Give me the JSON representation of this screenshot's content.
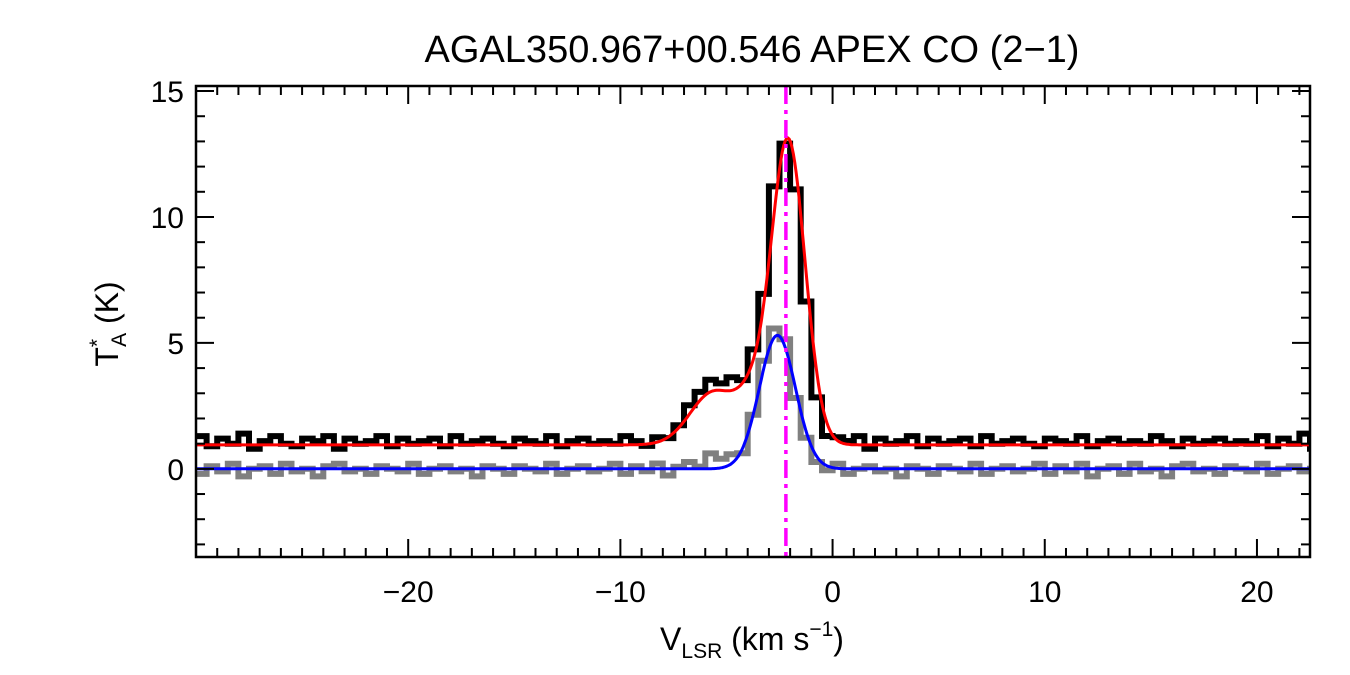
{
  "chart_data": {
    "type": "line",
    "title": "AGAL350.967+00.546  APEX CO (2−1)",
    "xlabel": {
      "main": "V",
      "sub": "LSR",
      "rest": " (km s",
      "sup": "−1",
      "end": ")"
    },
    "ylabel": {
      "main": "T",
      "sup": "*",
      "sub": "A",
      "rest": " (K)"
    },
    "xlim": [
      -30,
      22.5
    ],
    "ylim": [
      -3.5,
      15.2
    ],
    "xticks": [
      -20,
      -10,
      0,
      10,
      20
    ],
    "yticks": [
      0,
      5,
      10,
      15
    ],
    "xtick_labels": [
      "−20",
      "−10",
      "0",
      "10",
      "20"
    ],
    "ytick_labels": [
      "0",
      "5",
      "10",
      "15"
    ],
    "vline_x": -2.2,
    "series": [
      {
        "style": "histogram",
        "color": "#000000",
        "baseline": 1.0,
        "x_start": -30,
        "x_step": 0.5,
        "noise_values": [
          0.3,
          -0.1,
          0.2,
          0.0,
          0.4,
          -0.2,
          0.1,
          0.3,
          0.0,
          -0.1,
          0.2,
          0.1,
          0.3,
          -0.2,
          0.2,
          0.0,
          0.1,
          0.3,
          -0.1,
          0.2,
          0.0,
          0.1,
          0.2,
          -0.1,
          0.3,
          0.0,
          0.1,
          0.2,
          0.0,
          -0.1,
          0.2,
          0.1,
          0.0,
          0.3,
          -0.1,
          0.1,
          0.2,
          0.0,
          0.1,
          0.0,
          0.3,
          0.1,
          -0.1,
          0.2,
          0.0,
          0.1,
          0.2,
          0.0,
          0.1,
          0.0
        ],
        "components": [
          {
            "amp": 11.9,
            "center": -2.2,
            "sigma": 0.75
          },
          {
            "amp": 2.3,
            "center": -5.8,
            "sigma": 0.9
          },
          {
            "amp": 2.0,
            "center": -3.9,
            "sigma": 0.8
          }
        ]
      },
      {
        "style": "histogram",
        "color": "#808080",
        "baseline": 0.0,
        "x_start": -30,
        "x_step": 0.5,
        "noise_values": [
          -0.2,
          0.1,
          -0.1,
          0.2,
          -0.3,
          0.0,
          0.1,
          -0.2,
          0.2,
          -0.1,
          0.0,
          -0.3,
          0.1,
          0.2,
          -0.1,
          0.0,
          -0.2,
          0.1,
          0.0,
          -0.1,
          0.2,
          -0.2,
          0.0,
          0.1,
          -0.1,
          0.0,
          -0.3,
          0.1,
          0.0,
          -0.2,
          0.1,
          0.0,
          -0.1,
          0.2,
          -0.2,
          0.0,
          0.1,
          -0.1,
          0.0,
          0.2
        ],
        "components": [
          {
            "amp": 5.7,
            "center": -2.6,
            "sigma": 0.75
          },
          {
            "amp": 0.5,
            "center": -5.0,
            "sigma": 1.2
          }
        ]
      },
      {
        "style": "smooth",
        "color": "#ff0000",
        "baseline": 0.95,
        "components": [
          {
            "amp": 12.1,
            "center": -2.1,
            "sigma": 0.8
          },
          {
            "amp": 2.1,
            "center": -5.6,
            "sigma": 1.1
          },
          {
            "amp": 1.4,
            "center": -3.8,
            "sigma": 0.7
          }
        ]
      },
      {
        "style": "smooth",
        "color": "#0000ff",
        "baseline": 0.0,
        "components": [
          {
            "amp": 5.3,
            "center": -2.6,
            "sigma": 0.85
          }
        ]
      }
    ],
    "colors": {
      "vline": "#ff00ff",
      "axes": "#000000"
    }
  }
}
